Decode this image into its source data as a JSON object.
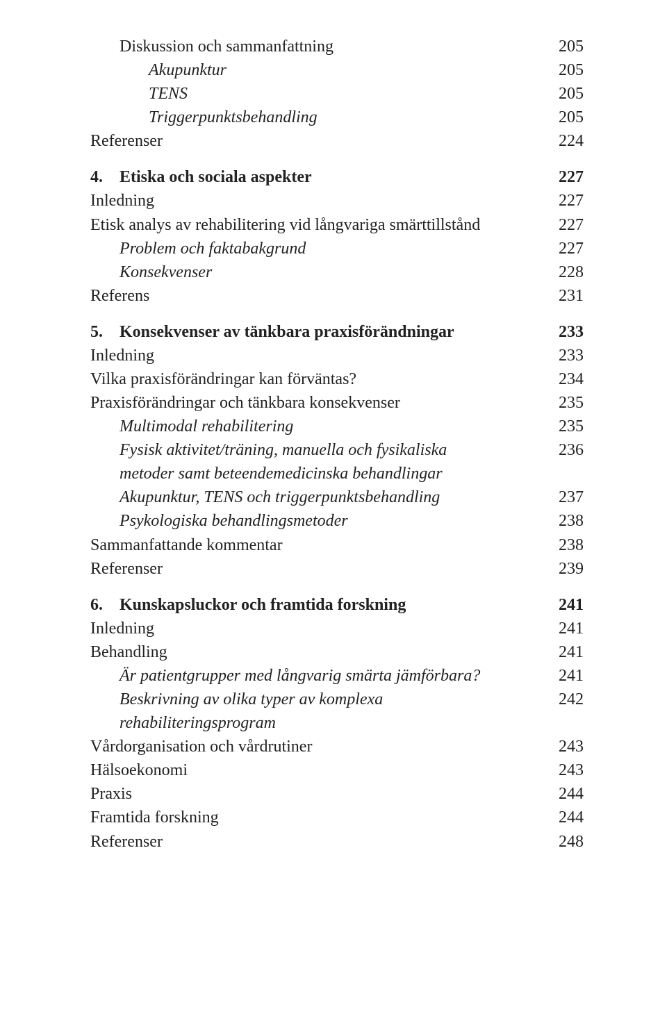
{
  "toc": [
    {
      "level": 1,
      "style": "normal",
      "text": "Diskussion och sammanfattning",
      "page": "205"
    },
    {
      "level": 2,
      "style": "italic",
      "text": "Akupunktur",
      "page": "205"
    },
    {
      "level": 2,
      "style": "italic",
      "text": "TENS",
      "page": "205"
    },
    {
      "level": 2,
      "style": "italic",
      "text": "Triggerpunktsbehandling",
      "page": "205"
    },
    {
      "level": 0,
      "style": "normal",
      "text": "Referenser",
      "page": "224"
    },
    {
      "gap": true
    },
    {
      "marker": "4.",
      "level": "head",
      "style": "bold",
      "text": "Etiska och sociala aspekter",
      "page": "227"
    },
    {
      "level": 0,
      "style": "normal",
      "text": "Inledning",
      "page": "227"
    },
    {
      "level": 0,
      "style": "normal",
      "text": "Etisk analys av rehabilitering vid långvariga smärttillstånd",
      "page": "227"
    },
    {
      "level": 1,
      "style": "italic",
      "text": "Problem och faktabakgrund",
      "page": "227"
    },
    {
      "level": 1,
      "style": "italic",
      "text": "Konsekvenser",
      "page": "228"
    },
    {
      "level": 0,
      "style": "normal",
      "text": "Referens",
      "page": "231"
    },
    {
      "gap": true
    },
    {
      "marker": "5.",
      "level": "head",
      "style": "bold",
      "text": "Konsekvenser av tänkbara praxisförändningar",
      "page": "233"
    },
    {
      "level": 0,
      "style": "normal",
      "text": "Inledning",
      "page": "233"
    },
    {
      "level": 0,
      "style": "normal",
      "text": "Vilka praxisförändringar kan förväntas?",
      "page": "234"
    },
    {
      "level": 0,
      "style": "normal",
      "text": "Praxisförändringar och tänkbara konsekvenser",
      "page": "235"
    },
    {
      "level": 1,
      "style": "italic",
      "text": "Multimodal rehabilitering",
      "page": "235"
    },
    {
      "level": 1,
      "style": "italic",
      "text": "Fysisk aktivitet/träning, manuella och fysikaliska",
      "page": "236"
    },
    {
      "level": 1,
      "style": "italic",
      "text": "metoder samt beteendemedicinska behandlingar",
      "page": ""
    },
    {
      "level": 1,
      "style": "italic",
      "text": "Akupunktur, TENS och triggerpunktsbehandling",
      "page": "237"
    },
    {
      "level": 1,
      "style": "italic",
      "text": "Psykologiska behandlingsmetoder",
      "page": "238"
    },
    {
      "level": 0,
      "style": "normal",
      "text": "Sammanfattande kommentar",
      "page": "238"
    },
    {
      "level": 0,
      "style": "normal",
      "text": "Referenser",
      "page": "239"
    },
    {
      "gap": true
    },
    {
      "marker": "6.",
      "level": "head",
      "style": "bold",
      "text": "Kunskapsluckor och framtida forskning",
      "page": "241"
    },
    {
      "level": 0,
      "style": "normal",
      "text": "Inledning",
      "page": "241"
    },
    {
      "level": 0,
      "style": "normal",
      "text": "Behandling",
      "page": "241"
    },
    {
      "level": 1,
      "style": "italic",
      "text": "Är patientgrupper med långvarig smärta jämförbara?",
      "page": "241"
    },
    {
      "level": 1,
      "style": "italic",
      "text": "Beskrivning av olika typer av komplexa",
      "page": "242"
    },
    {
      "level": 1,
      "style": "italic",
      "text": "rehabiliteringsprogram",
      "page": ""
    },
    {
      "level": 0,
      "style": "normal",
      "text": "Vårdorganisation och vårdrutiner",
      "page": "243"
    },
    {
      "level": 0,
      "style": "normal",
      "text": "Hälsoekonomi",
      "page": "243"
    },
    {
      "level": 0,
      "style": "normal",
      "text": "Praxis",
      "page": "244"
    },
    {
      "level": 0,
      "style": "normal",
      "text": "Framtida forskning",
      "page": "244"
    },
    {
      "level": 0,
      "style": "normal",
      "text": "Referenser",
      "page": "248"
    }
  ]
}
